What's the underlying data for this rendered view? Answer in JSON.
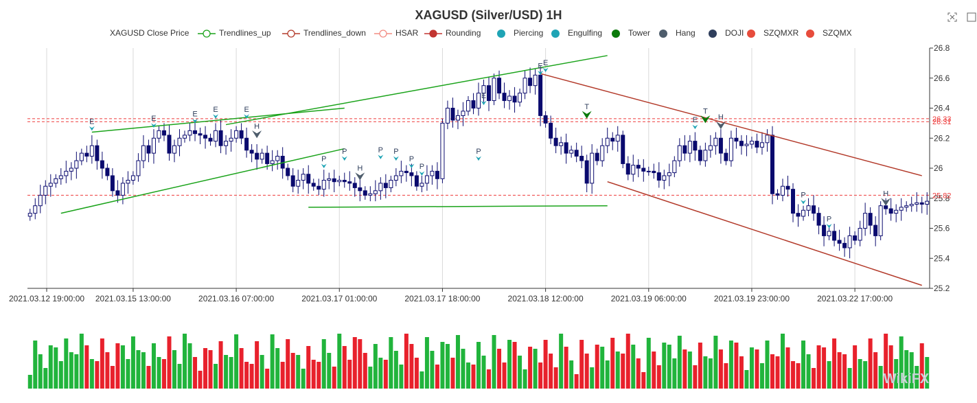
{
  "title": "XAGUSD (Silver/USD) 1H",
  "legend": [
    {
      "label": "XAGUSD Close Price",
      "kind": "none",
      "color": "#c23531"
    },
    {
      "label": "Trendlines_up",
      "kind": "line-hollow",
      "color": "#1aa31a"
    },
    {
      "label": "Trendlines_down",
      "kind": "line-hollow",
      "color": "#b33a2a"
    },
    {
      "label": "HSAR",
      "kind": "line-hollow",
      "color": "#f28b82"
    },
    {
      "label": "Rounding",
      "kind": "line-dot",
      "color": "#c23531"
    },
    {
      "label": "Piercing",
      "kind": "dot",
      "color": "#1fa4b5"
    },
    {
      "label": "Engulfing",
      "kind": "dot",
      "color": "#1fa4b5"
    },
    {
      "label": "Tower",
      "kind": "dot",
      "color": "#0b7a0b"
    },
    {
      "label": "Hang",
      "kind": "dot",
      "color": "#4e5d6c"
    },
    {
      "label": "DOJI",
      "kind": "dot",
      "color": "#2f3e5c"
    },
    {
      "label": "SZQMXR",
      "kind": "dot",
      "color": "#e74c3c"
    },
    {
      "label": "SZQMX",
      "kind": "dot",
      "color": "#e74c3c"
    }
  ],
  "toolbox": {
    "zoom_icon": "zoom-icon",
    "restore_icon": "restore-icon"
  },
  "colors": {
    "up": "#0a0a6e",
    "down": "#0a0a6e",
    "vol_up": "#21b43c",
    "vol_down": "#e8212c",
    "grid": "#d9d9d9",
    "hsar": "#ee3a3a",
    "trend_up": "#1aa31a",
    "trend_down": "#b33a2a"
  },
  "chart_data": {
    "type": "candlestick",
    "title": "XAGUSD (Silver/USD) 1H",
    "x_tick_labels": [
      "2021.03.12 19:00:00",
      "2021.03.15 13:00:00",
      "2021.03.16 07:00:00",
      "2021.03.17 01:00:00",
      "2021.03.17 18:00:00",
      "2021.03.18 12:00:00",
      "2021.03.19 06:00:00",
      "2021.03.19 23:00:00",
      "2021.03.22 17:00:00"
    ],
    "x_tick_index": [
      0,
      20,
      40,
      60,
      80,
      100,
      120,
      140,
      160
    ],
    "y_axis": {
      "min": 25.2,
      "max": 26.8,
      "ticks": [
        "25.2",
        "25.4",
        "25.6",
        "25.8",
        "26",
        "26.2",
        "26.4",
        "26.6",
        "26.8"
      ],
      "position": "right"
    },
    "grid": true,
    "legend_placement": "top",
    "close": [
      25.7,
      25.75,
      25.82,
      25.88,
      25.9,
      25.93,
      25.95,
      25.98,
      26.0,
      26.05,
      26.1,
      26.08,
      26.15,
      26.05,
      26.0,
      25.95,
      25.85,
      25.82,
      25.9,
      25.92,
      25.95,
      26.05,
      26.15,
      26.1,
      26.2,
      26.25,
      26.22,
      26.1,
      26.15,
      26.2,
      26.22,
      26.25,
      26.23,
      26.22,
      26.2,
      26.18,
      26.25,
      26.15,
      26.18,
      26.2,
      26.25,
      26.2,
      26.12,
      26.1,
      26.06,
      26.1,
      26.03,
      26.05,
      26.08,
      26.0,
      25.95,
      25.88,
      25.92,
      25.96,
      25.9,
      25.88,
      25.86,
      25.92,
      25.93,
      25.91,
      25.92,
      25.91,
      25.9,
      25.87,
      25.85,
      25.82,
      25.83,
      25.85,
      25.9,
      25.87,
      25.92,
      25.95,
      25.98,
      25.97,
      25.95,
      25.88,
      25.9,
      25.95,
      25.98,
      25.93,
      26.3,
      26.4,
      26.32,
      26.35,
      26.38,
      26.45,
      26.4,
      26.5,
      26.55,
      26.45,
      26.6,
      26.5,
      26.45,
      26.48,
      26.44,
      26.5,
      26.6,
      26.55,
      26.62,
      26.35,
      26.3,
      26.2,
      26.15,
      26.17,
      26.1,
      26.12,
      26.08,
      26.05,
      25.9,
      26.1,
      26.05,
      26.15,
      26.2,
      26.18,
      26.22,
      26.03,
      25.96,
      26.02,
      26.0,
      25.98,
      25.98,
      25.97,
      25.92,
      25.95,
      25.97,
      26.05,
      26.15,
      26.1,
      26.18,
      26.12,
      26.05,
      26.12,
      26.15,
      26.2,
      26.1,
      26.05,
      26.2,
      26.18,
      26.15,
      26.16,
      26.18,
      26.14,
      26.17,
      26.22,
      25.83,
      25.82,
      25.88,
      25.86,
      25.7,
      25.68,
      25.72,
      25.75,
      25.7,
      25.62,
      25.55,
      25.58,
      25.52,
      25.5,
      25.47,
      25.55,
      25.52,
      25.6,
      25.7,
      25.62,
      25.55,
      25.75,
      25.73,
      25.7,
      25.72,
      25.74,
      25.75,
      25.76,
      25.77,
      25.76,
      25.78
    ]
  },
  "watermark": "WikiFX"
}
